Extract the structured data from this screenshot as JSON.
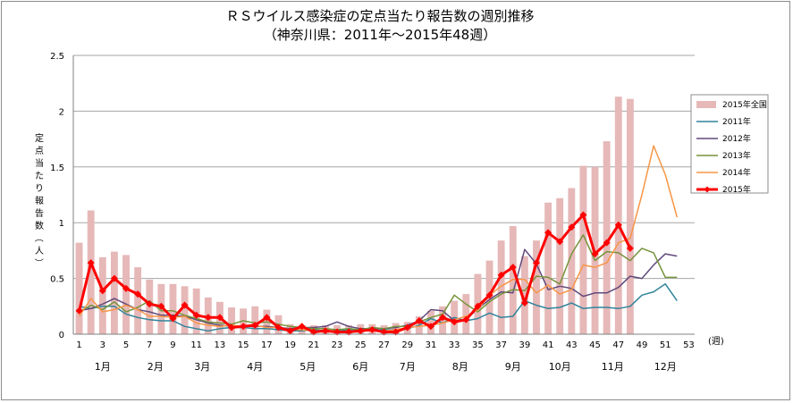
{
  "chart_data": {
    "type": "bar+line",
    "title": "ＲＳウイルス感染症の定点当たり報告数の週別推移",
    "subtitle": "（神奈川県：2011年～2015年48週）",
    "ylabel": "定点当たり報告数（人）",
    "xlabel_unit": "(週)",
    "ylim": [
      0,
      2.5
    ],
    "yticks": [
      "0",
      "0.5",
      "1",
      "1.5",
      "2",
      "2.5"
    ],
    "xlim": [
      1,
      53
    ],
    "xticks": [
      1,
      3,
      5,
      7,
      9,
      11,
      13,
      15,
      17,
      19,
      21,
      23,
      25,
      27,
      29,
      31,
      33,
      35,
      37,
      39,
      41,
      43,
      45,
      47,
      49,
      51,
      53
    ],
    "months": [
      {
        "label": "1月",
        "week": 3
      },
      {
        "label": "2月",
        "week": 7.5
      },
      {
        "label": "3月",
        "week": 11.5
      },
      {
        "label": "4月",
        "week": 16
      },
      {
        "label": "5月",
        "week": 20.5
      },
      {
        "label": "6月",
        "week": 25
      },
      {
        "label": "7月",
        "week": 29
      },
      {
        "label": "8月",
        "week": 33.5
      },
      {
        "label": "9月",
        "week": 38
      },
      {
        "label": "10月",
        "week": 42
      },
      {
        "label": "11月",
        "week": 46.5
      },
      {
        "label": "12月",
        "week": 51
      }
    ],
    "bars": {
      "name": "2015年全国",
      "color": "#e6b8b8",
      "weeks": [
        1,
        2,
        3,
        4,
        5,
        6,
        7,
        8,
        9,
        10,
        11,
        12,
        13,
        14,
        15,
        16,
        17,
        18,
        19,
        20,
        21,
        22,
        23,
        24,
        25,
        26,
        27,
        28,
        29,
        30,
        31,
        32,
        33,
        34,
        35,
        36,
        37,
        38,
        39,
        40,
        41,
        42,
        43,
        44,
        45,
        46,
        47,
        48
      ],
      "values": [
        0.82,
        1.11,
        0.69,
        0.74,
        0.71,
        0.6,
        0.49,
        0.45,
        0.45,
        0.43,
        0.41,
        0.33,
        0.29,
        0.24,
        0.23,
        0.25,
        0.22,
        0.17,
        0.09,
        0.08,
        0.08,
        0.08,
        0.08,
        0.08,
        0.09,
        0.09,
        0.08,
        0.1,
        0.11,
        0.16,
        0.21,
        0.25,
        0.3,
        0.36,
        0.54,
        0.66,
        0.84,
        0.97,
        0.7,
        0.84,
        1.18,
        1.22,
        1.31,
        1.51,
        1.5,
        1.73,
        2.13,
        2.11
      ]
    },
    "series": [
      {
        "name": "2011年",
        "color": "#31849b",
        "width": 1.5,
        "marker": false,
        "values": [
          0.25,
          0.23,
          0.25,
          0.25,
          0.18,
          0.15,
          0.13,
          0.12,
          0.12,
          0.07,
          0.05,
          0.03,
          0.05,
          0.06,
          0.06,
          0.05,
          0.05,
          0.04,
          0.03,
          0.03,
          0.04,
          0.03,
          0.03,
          0.04,
          0.03,
          0.03,
          0.04,
          0.04,
          0.05,
          0.08,
          0.14,
          0.1,
          0.15,
          0.12,
          0.14,
          0.19,
          0.15,
          0.16,
          0.3,
          0.26,
          0.23,
          0.24,
          0.28,
          0.23,
          0.24,
          0.24,
          0.23,
          0.25,
          0.35,
          0.38,
          0.45,
          0.3
        ]
      },
      {
        "name": "2012年",
        "color": "#604a7b",
        "width": 1.5,
        "marker": false,
        "values": [
          0.21,
          0.23,
          0.27,
          0.32,
          0.27,
          0.22,
          0.2,
          0.17,
          0.17,
          0.16,
          0.13,
          0.1,
          0.08,
          0.07,
          0.07,
          0.07,
          0.07,
          0.06,
          0.05,
          0.06,
          0.06,
          0.07,
          0.11,
          0.07,
          0.05,
          0.05,
          0.05,
          0.06,
          0.08,
          0.12,
          0.22,
          0.21,
          0.12,
          0.13,
          0.23,
          0.31,
          0.38,
          0.37,
          0.76,
          0.63,
          0.4,
          0.43,
          0.41,
          0.34,
          0.37,
          0.37,
          0.42,
          0.52,
          0.5,
          0.62,
          0.72,
          0.7
        ]
      },
      {
        "name": "2013年",
        "color": "#76933c",
        "width": 1.5,
        "marker": false,
        "values": [
          0.2,
          0.26,
          0.22,
          0.29,
          0.2,
          0.24,
          0.3,
          0.21,
          0.21,
          0.17,
          0.14,
          0.11,
          0.1,
          0.09,
          0.12,
          0.1,
          0.11,
          0.09,
          0.07,
          0.06,
          0.05,
          0.05,
          0.04,
          0.05,
          0.04,
          0.06,
          0.05,
          0.07,
          0.07,
          0.11,
          0.15,
          0.18,
          0.35,
          0.27,
          0.2,
          0.29,
          0.36,
          0.4,
          0.39,
          0.52,
          0.51,
          0.45,
          0.72,
          0.89,
          0.66,
          0.74,
          0.73,
          0.66,
          0.77,
          0.73,
          0.51,
          0.51
        ]
      },
      {
        "name": "2014年",
        "color": "#f79646",
        "width": 1.5,
        "marker": false,
        "values": [
          0.16,
          0.32,
          0.2,
          0.22,
          0.26,
          0.22,
          0.16,
          0.16,
          0.15,
          0.16,
          0.1,
          0.08,
          0.07,
          0.08,
          0.07,
          0.08,
          0.06,
          0.06,
          0.04,
          0.04,
          0.03,
          0.03,
          0.02,
          0.03,
          0.03,
          0.03,
          0.03,
          0.04,
          0.06,
          0.07,
          0.08,
          0.1,
          0.13,
          0.16,
          0.22,
          0.35,
          0.43,
          0.49,
          0.49,
          0.37,
          0.44,
          0.36,
          0.4,
          0.62,
          0.6,
          0.64,
          0.82,
          0.86,
          1.25,
          1.69,
          1.43,
          1.05
        ]
      },
      {
        "name": "2015年",
        "color": "#ff0000",
        "width": 3,
        "marker": true,
        "values": [
          0.21,
          0.64,
          0.39,
          0.5,
          0.41,
          0.36,
          0.27,
          0.25,
          0.14,
          0.26,
          0.17,
          0.15,
          0.15,
          0.06,
          0.07,
          0.08,
          0.15,
          0.06,
          0.03,
          0.07,
          0.02,
          0.03,
          0.02,
          0.02,
          0.03,
          0.04,
          0.02,
          0.02,
          0.06,
          0.12,
          0.07,
          0.15,
          0.11,
          0.13,
          0.25,
          0.35,
          0.53,
          0.6,
          0.28,
          0.64,
          0.91,
          0.83,
          0.96,
          1.07,
          0.72,
          0.82,
          0.98,
          0.77
        ]
      }
    ]
  }
}
